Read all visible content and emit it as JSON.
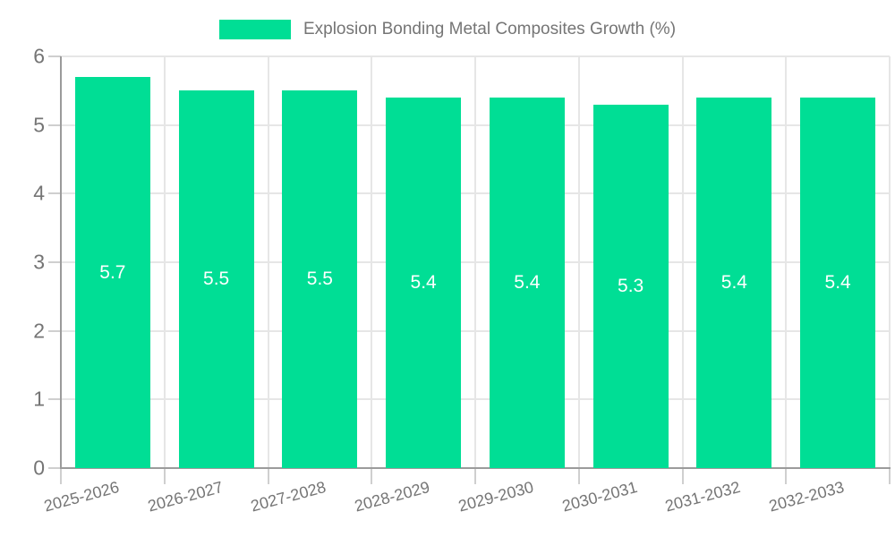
{
  "chart_data": {
    "type": "bar",
    "title": "Explosion Bonding Metal Composites Growth (%)",
    "categories": [
      "2025-2026",
      "2026-2027",
      "2027-2028",
      "2028-2029",
      "2029-2030",
      "2030-2031",
      "2031-2032",
      "2032-2033"
    ],
    "values": [
      5.7,
      5.5,
      5.5,
      5.4,
      5.4,
      5.3,
      5.4,
      5.4
    ],
    "bar_labels": [
      "5.7",
      "5.5",
      "5.5",
      "5.4",
      "5.4",
      "5.3",
      "5.4",
      "5.4"
    ],
    "xlabel": "",
    "ylabel": "",
    "ylim": [
      0,
      6
    ],
    "ytick_labels": [
      "0",
      "1",
      "2",
      "3",
      "4",
      "5",
      "6"
    ],
    "grid": true,
    "legend_position": "top-center",
    "x_label_rotation_deg": -15,
    "colors": {
      "bar": "#00DE95",
      "grid": "#e6e6e6",
      "axis": "#9b9b9b",
      "tick": "#cfcfcf",
      "text": "#757575",
      "bar_label": "#ffffff",
      "background": "#ffffff"
    }
  }
}
